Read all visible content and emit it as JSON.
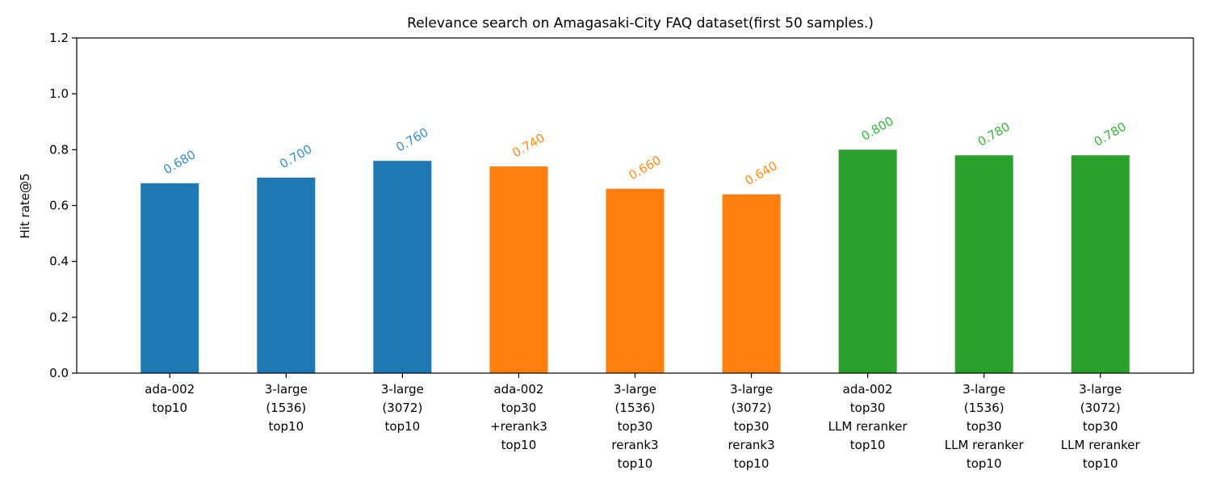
{
  "chart_data": {
    "type": "bar",
    "title": "Relevance search on Amagasaki-City FAQ dataset(first 50 samples.)",
    "xlabel": "",
    "ylabel": "Hit rate@5",
    "ylim": [
      0,
      1.2
    ],
    "yticks": [
      "0.0",
      "0.2",
      "0.4",
      "0.6",
      "0.8",
      "1.0",
      "1.2"
    ],
    "grid": false,
    "categories": [
      [
        "ada-002",
        "top10"
      ],
      [
        "3-large",
        "(1536)",
        "top10"
      ],
      [
        "3-large",
        "(3072)",
        "top10"
      ],
      [
        "ada-002",
        "top30",
        "+rerank3",
        "top10"
      ],
      [
        "3-large",
        "(1536)",
        "top30",
        "rerank3",
        "top10"
      ],
      [
        "3-large",
        "(3072)",
        "top30",
        "rerank3",
        "top10"
      ],
      [
        "ada-002",
        "top30",
        "LLM reranker",
        "top10"
      ],
      [
        "3-large",
        "(1536)",
        "top30",
        "LLM reranker",
        "top10"
      ],
      [
        "3-large",
        "(3072)",
        "top30",
        "LLM reranker",
        "top10"
      ]
    ],
    "values": [
      0.68,
      0.7,
      0.76,
      0.74,
      0.66,
      0.64,
      0.8,
      0.78,
      0.78
    ],
    "value_labels": [
      "0.680",
      "0.700",
      "0.760",
      "0.740",
      "0.660",
      "0.640",
      "0.800",
      "0.780",
      "0.780"
    ],
    "colors": [
      "#1f77b4",
      "#1f77b4",
      "#1f77b4",
      "#ff7f0e",
      "#ff7f0e",
      "#ff7f0e",
      "#2ca02c",
      "#2ca02c",
      "#2ca02c"
    ],
    "label_colors": [
      "#3a8fc9",
      "#3a8fc9",
      "#3a8fc9",
      "#ff8c1a",
      "#ff8c1a",
      "#ff8c1a",
      "#3bb53b",
      "#3bb53b",
      "#3bb53b"
    ]
  }
}
